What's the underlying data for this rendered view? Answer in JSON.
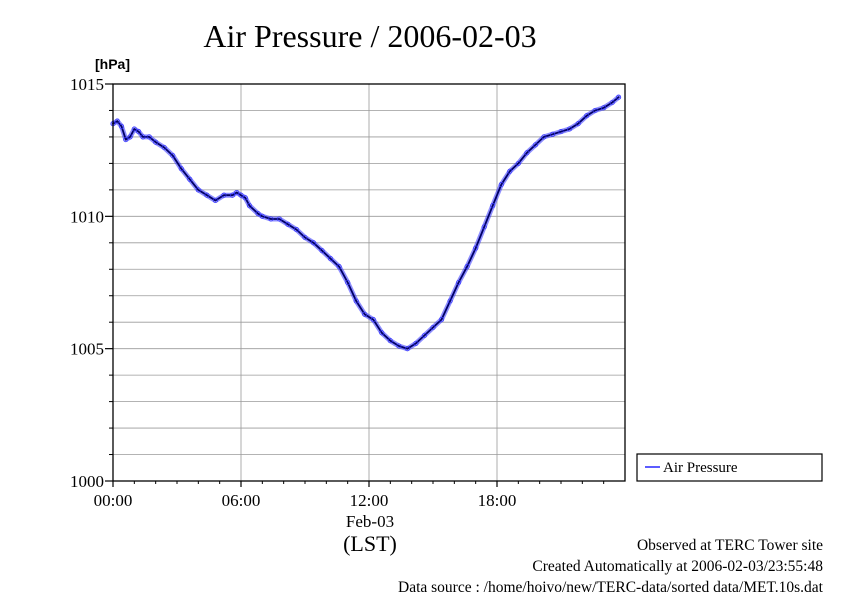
{
  "chart_data": {
    "type": "line",
    "title": "Air Pressure / 2006-02-03",
    "ylabel": "[hPa]",
    "xlabel": "(LST)",
    "date_label": "Feb-03",
    "ylim": [
      1000,
      1015
    ],
    "xlim": [
      0,
      24
    ],
    "y_major_ticks": [
      1000,
      1005,
      1010,
      1015
    ],
    "y_tick_labels": [
      "1000",
      "1005",
      "1010",
      "1015"
    ],
    "y_minor_step": 1,
    "x_ticks": [
      0,
      6,
      12,
      18
    ],
    "x_tick_labels": [
      "00:00",
      "06:00",
      "12:00",
      "18:00"
    ],
    "grid": true,
    "legend": "right",
    "series": [
      {
        "name": "Air Pressure",
        "color": "#3333ff",
        "x": [
          0,
          0.2,
          0.4,
          0.6,
          0.8,
          1.0,
          1.2,
          1.4,
          1.7,
          2.0,
          2.4,
          2.8,
          3.2,
          3.6,
          4.0,
          4.4,
          4.8,
          5.2,
          5.6,
          5.8,
          6.0,
          6.2,
          6.4,
          6.8,
          7.0,
          7.4,
          7.8,
          8.2,
          8.6,
          9.0,
          9.4,
          9.8,
          10.2,
          10.6,
          11.0,
          11.4,
          11.8,
          12.2,
          12.6,
          13.0,
          13.4,
          13.8,
          14.2,
          14.6,
          15.0,
          15.4,
          15.8,
          16.2,
          16.6,
          17.0,
          17.4,
          17.8,
          18.2,
          18.6,
          19.0,
          19.4,
          19.8,
          20.2,
          20.6,
          21.0,
          21.4,
          21.8,
          22.2,
          22.6,
          23.0,
          23.4,
          23.7
        ],
        "values": [
          1013.5,
          1013.6,
          1013.4,
          1012.9,
          1013.0,
          1013.3,
          1013.2,
          1013.0,
          1013.0,
          1012.8,
          1012.6,
          1012.3,
          1011.8,
          1011.4,
          1011.0,
          1010.8,
          1010.6,
          1010.8,
          1010.8,
          1010.9,
          1010.8,
          1010.7,
          1010.4,
          1010.1,
          1010.0,
          1009.9,
          1009.9,
          1009.7,
          1009.5,
          1009.2,
          1009.0,
          1008.7,
          1008.4,
          1008.1,
          1007.5,
          1006.8,
          1006.3,
          1006.1,
          1005.6,
          1005.3,
          1005.1,
          1005.0,
          1005.2,
          1005.5,
          1005.8,
          1006.1,
          1006.8,
          1007.5,
          1008.1,
          1008.8,
          1009.6,
          1010.4,
          1011.2,
          1011.7,
          1012.0,
          1012.4,
          1012.7,
          1013.0,
          1013.1,
          1013.2,
          1013.3,
          1013.5,
          1013.8,
          1014.0,
          1014.1,
          1014.3,
          1014.5
        ]
      }
    ]
  },
  "footer": {
    "line1": "Observed at TERC Tower site",
    "line2": "Created Automatically at 2006-02-03/23:55:48",
    "line3": "Data source : /home/hoivo/new/TERC-data/sorted  data/MET.10s.dat"
  }
}
